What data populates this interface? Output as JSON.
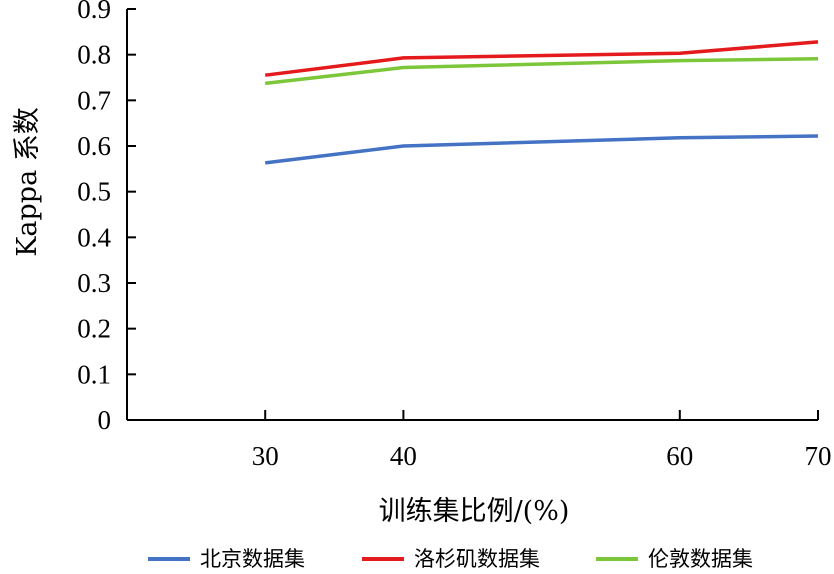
{
  "chart_data": {
    "type": "line",
    "xlabel": "训练集比例/(%)",
    "ylabel": "Kappa 系数",
    "x": [
      30,
      40,
      60,
      70
    ],
    "xticks": [
      30,
      40,
      60,
      70
    ],
    "xlim": [
      20,
      70
    ],
    "ylim": [
      0,
      0.9
    ],
    "yticks": [
      0,
      0.1,
      0.2,
      0.3,
      0.4,
      0.5,
      0.6,
      0.7,
      0.8,
      0.9
    ],
    "ytick_labels": [
      "0",
      "0.1",
      "0.2",
      "0.3",
      "0.4",
      "0.5",
      "0.6",
      "0.7",
      "0.8",
      "0.9"
    ],
    "grid": false,
    "legend_position": "bottom",
    "series": [
      {
        "name": "北京数据集",
        "color": "#4472C4",
        "values": [
          0.563,
          0.6,
          0.618,
          0.622
        ]
      },
      {
        "name": "洛杉矶数据集",
        "color": "#E41A1C",
        "values": [
          0.755,
          0.793,
          0.803,
          0.828
        ]
      },
      {
        "name": "伦敦数据集",
        "color": "#7CC63A",
        "values": [
          0.737,
          0.772,
          0.787,
          0.791
        ]
      }
    ]
  }
}
